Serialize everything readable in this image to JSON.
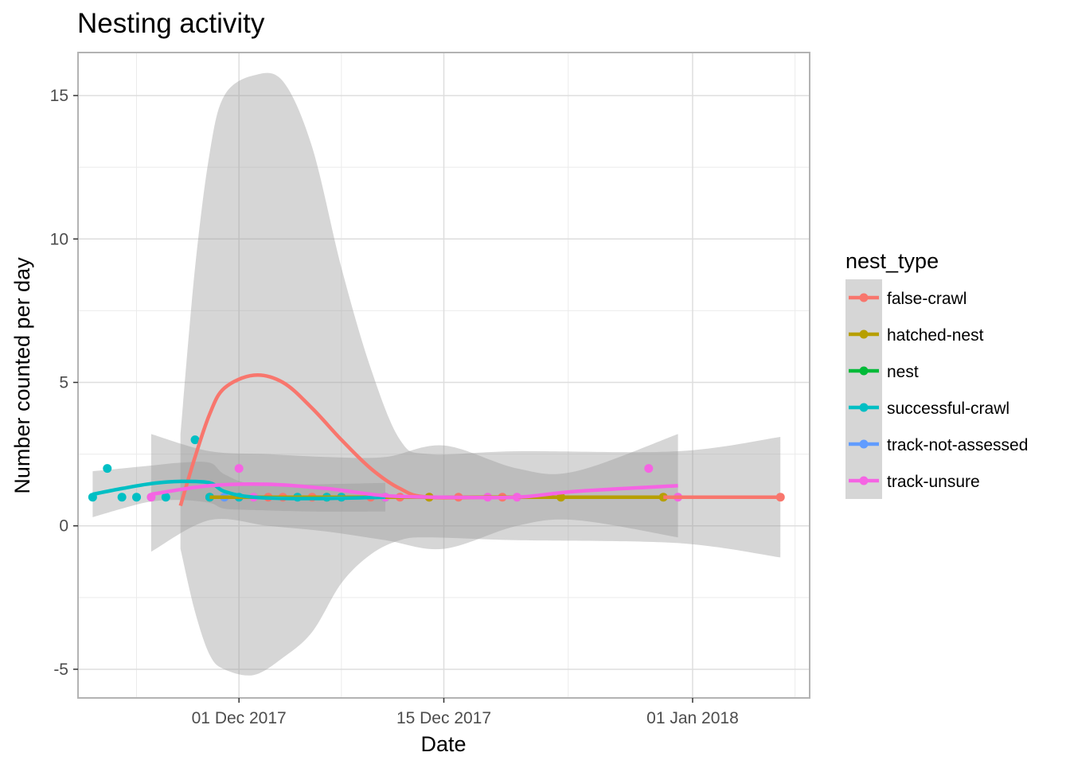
{
  "chart_data": {
    "type": "scatter",
    "title": "Nesting activity",
    "xlabel": "Date",
    "ylabel": "Number counted per day",
    "xlim": [
      "2017-11-20",
      "2018-01-09"
    ],
    "ylim": [
      -6,
      16.5
    ],
    "x_ticks": [
      {
        "date": "2017-12-01",
        "label": "01 Dec 2017"
      },
      {
        "date": "2017-12-15",
        "label": "15 Dec 2017"
      },
      {
        "date": "2018-01-01",
        "label": "01 Jan 2018"
      }
    ],
    "y_ticks": [
      {
        "value": -5,
        "label": "-5"
      },
      {
        "value": 0,
        "label": "0"
      },
      {
        "value": 5,
        "label": "5"
      },
      {
        "value": 10,
        "label": "10"
      },
      {
        "value": 15,
        "label": "15"
      }
    ],
    "grid": true,
    "legend": {
      "title": "nest_type",
      "position": "right"
    },
    "smoothing": "loess with confidence band",
    "series": [
      {
        "name": "false-crawl",
        "color": "#F8766D",
        "points": [
          {
            "x": "2017-11-30",
            "y": 1
          },
          {
            "x": "2017-12-03",
            "y": 1
          },
          {
            "x": "2017-12-04",
            "y": 1
          },
          {
            "x": "2017-12-06",
            "y": 1
          },
          {
            "x": "2017-12-08",
            "y": 1
          },
          {
            "x": "2017-12-10",
            "y": 1
          },
          {
            "x": "2017-12-12",
            "y": 1
          },
          {
            "x": "2017-12-14",
            "y": 1
          },
          {
            "x": "2017-12-16",
            "y": 1
          },
          {
            "x": "2017-12-19",
            "y": 1
          },
          {
            "x": "2018-01-07",
            "y": 1
          }
        ],
        "smooth": [
          {
            "x": "2017-11-27",
            "y": 0.7
          },
          {
            "x": "2017-11-28",
            "y": 2.4
          },
          {
            "x": "2017-11-29",
            "y": 3.9
          },
          {
            "x": "2017-11-30",
            "y": 4.8
          },
          {
            "x": "2017-12-02",
            "y": 5.25
          },
          {
            "x": "2017-12-04",
            "y": 5.0
          },
          {
            "x": "2017-12-06",
            "y": 4.1
          },
          {
            "x": "2017-12-08",
            "y": 3.0
          },
          {
            "x": "2017-12-10",
            "y": 2.0
          },
          {
            "x": "2017-12-12",
            "y": 1.3
          },
          {
            "x": "2017-12-14",
            "y": 1.0
          },
          {
            "x": "2017-12-20",
            "y": 1.0
          },
          {
            "x": "2017-12-31",
            "y": 1.0
          },
          {
            "x": "2018-01-07",
            "y": 1.0
          }
        ],
        "band_upper": [
          {
            "x": "2017-11-27",
            "y": 3.2
          },
          {
            "x": "2017-11-28",
            "y": 9.0
          },
          {
            "x": "2017-11-29",
            "y": 13.0
          },
          {
            "x": "2017-11-30",
            "y": 15.0
          },
          {
            "x": "2017-12-02",
            "y": 15.7
          },
          {
            "x": "2017-12-04",
            "y": 15.5
          },
          {
            "x": "2017-12-06",
            "y": 13.2
          },
          {
            "x": "2017-12-08",
            "y": 9.0
          },
          {
            "x": "2017-12-10",
            "y": 5.5
          },
          {
            "x": "2017-12-12",
            "y": 3.0
          },
          {
            "x": "2017-12-14",
            "y": 2.5
          },
          {
            "x": "2017-12-20",
            "y": 2.6
          },
          {
            "x": "2017-12-31",
            "y": 2.6
          },
          {
            "x": "2018-01-07",
            "y": 3.1
          }
        ],
        "band_lower": [
          {
            "x": "2017-11-27",
            "y": -0.8
          },
          {
            "x": "2017-11-28",
            "y": -3.0
          },
          {
            "x": "2017-11-29",
            "y": -4.5
          },
          {
            "x": "2017-11-30",
            "y": -5.0
          },
          {
            "x": "2017-12-02",
            "y": -5.2
          },
          {
            "x": "2017-12-04",
            "y": -4.6
          },
          {
            "x": "2017-12-06",
            "y": -3.7
          },
          {
            "x": "2017-12-08",
            "y": -2.0
          },
          {
            "x": "2017-12-10",
            "y": -1.0
          },
          {
            "x": "2017-12-12",
            "y": -0.5
          },
          {
            "x": "2017-12-14",
            "y": -0.4
          },
          {
            "x": "2017-12-20",
            "y": -0.5
          },
          {
            "x": "2017-12-31",
            "y": -0.6
          },
          {
            "x": "2018-01-07",
            "y": -1.1
          }
        ]
      },
      {
        "name": "hatched-nest",
        "color": "#B79F00",
        "points": [
          {
            "x": "2017-11-29",
            "y": 1
          },
          {
            "x": "2017-12-07",
            "y": 1
          },
          {
            "x": "2017-12-14",
            "y": 1
          },
          {
            "x": "2017-12-23",
            "y": 1
          },
          {
            "x": "2017-12-30",
            "y": 1
          }
        ],
        "smooth": [
          {
            "x": "2017-11-29",
            "y": 1.0
          },
          {
            "x": "2017-12-30",
            "y": 1.0
          }
        ]
      },
      {
        "name": "nest",
        "color": "#00BA38",
        "points": [],
        "smooth": []
      },
      {
        "name": "successful-crawl",
        "color": "#00BFC4",
        "points": [
          {
            "x": "2017-11-21",
            "y": 1
          },
          {
            "x": "2017-11-22",
            "y": 2
          },
          {
            "x": "2017-11-23",
            "y": 1
          },
          {
            "x": "2017-11-24",
            "y": 1
          },
          {
            "x": "2017-11-26",
            "y": 1
          },
          {
            "x": "2017-11-28",
            "y": 3
          },
          {
            "x": "2017-11-29",
            "y": 1
          },
          {
            "x": "2017-12-01",
            "y": 1
          },
          {
            "x": "2017-12-05",
            "y": 1
          },
          {
            "x": "2017-12-07",
            "y": 1
          },
          {
            "x": "2017-12-08",
            "y": 1
          },
          {
            "x": "2017-12-11",
            "y": 1
          }
        ],
        "smooth": [
          {
            "x": "2017-11-21",
            "y": 1.1
          },
          {
            "x": "2017-11-23",
            "y": 1.3
          },
          {
            "x": "2017-11-25",
            "y": 1.47
          },
          {
            "x": "2017-11-27",
            "y": 1.55
          },
          {
            "x": "2017-11-29",
            "y": 1.5
          },
          {
            "x": "2017-11-30",
            "y": 1.2
          },
          {
            "x": "2017-12-02",
            "y": 1.0
          },
          {
            "x": "2017-12-06",
            "y": 0.95
          },
          {
            "x": "2017-12-11",
            "y": 1.0
          }
        ],
        "band_upper": [
          {
            "x": "2017-11-21",
            "y": 1.9
          },
          {
            "x": "2017-11-23",
            "y": 2.0
          },
          {
            "x": "2017-11-25",
            "y": 2.1
          },
          {
            "x": "2017-11-27",
            "y": 2.2
          },
          {
            "x": "2017-11-29",
            "y": 2.2
          },
          {
            "x": "2017-11-30",
            "y": 1.8
          },
          {
            "x": "2017-12-02",
            "y": 1.45
          },
          {
            "x": "2017-12-06",
            "y": 1.45
          },
          {
            "x": "2017-12-11",
            "y": 1.5
          }
        ],
        "band_lower": [
          {
            "x": "2017-11-21",
            "y": 0.3
          },
          {
            "x": "2017-11-23",
            "y": 0.6
          },
          {
            "x": "2017-11-25",
            "y": 0.85
          },
          {
            "x": "2017-11-27",
            "y": 0.9
          },
          {
            "x": "2017-11-29",
            "y": 0.8
          },
          {
            "x": "2017-11-30",
            "y": 0.6
          },
          {
            "x": "2017-12-02",
            "y": 0.55
          },
          {
            "x": "2017-12-06",
            "y": 0.5
          },
          {
            "x": "2017-12-11",
            "y": 0.5
          }
        ]
      },
      {
        "name": "track-not-assessed",
        "color": "#619CFF",
        "points": [
          {
            "x": "2017-11-30",
            "y": 1
          }
        ],
        "smooth": []
      },
      {
        "name": "track-unsure",
        "color": "#F564E3",
        "points": [
          {
            "x": "2017-11-25",
            "y": 1
          },
          {
            "x": "2017-12-01",
            "y": 2
          },
          {
            "x": "2017-12-02",
            "y": 1
          },
          {
            "x": "2017-12-11",
            "y": 1
          },
          {
            "x": "2017-12-18",
            "y": 1
          },
          {
            "x": "2017-12-20",
            "y": 1
          },
          {
            "x": "2017-12-29",
            "y": 2
          },
          {
            "x": "2017-12-31",
            "y": 1
          }
        ],
        "smooth": [
          {
            "x": "2017-11-25",
            "y": 1.1
          },
          {
            "x": "2017-11-29",
            "y": 1.4
          },
          {
            "x": "2017-12-03",
            "y": 1.45
          },
          {
            "x": "2017-12-07",
            "y": 1.3
          },
          {
            "x": "2017-12-11",
            "y": 1.05
          },
          {
            "x": "2017-12-15",
            "y": 1.0
          },
          {
            "x": "2017-12-20",
            "y": 1.0
          },
          {
            "x": "2017-12-24",
            "y": 1.2
          },
          {
            "x": "2017-12-31",
            "y": 1.4
          }
        ],
        "band_upper": [
          {
            "x": "2017-11-25",
            "y": 3.2
          },
          {
            "x": "2017-11-29",
            "y": 2.6
          },
          {
            "x": "2017-12-03",
            "y": 2.5
          },
          {
            "x": "2017-12-07",
            "y": 2.4
          },
          {
            "x": "2017-12-11",
            "y": 2.4
          },
          {
            "x": "2017-12-15",
            "y": 2.8
          },
          {
            "x": "2017-12-20",
            "y": 2.0
          },
          {
            "x": "2017-12-24",
            "y": 1.9
          },
          {
            "x": "2017-12-31",
            "y": 3.2
          }
        ],
        "band_lower": [
          {
            "x": "2017-11-25",
            "y": -0.9
          },
          {
            "x": "2017-11-29",
            "y": 0.2
          },
          {
            "x": "2017-12-03",
            "y": 0.0
          },
          {
            "x": "2017-12-07",
            "y": -0.2
          },
          {
            "x": "2017-12-11",
            "y": -0.5
          },
          {
            "x": "2017-12-15",
            "y": -0.8
          },
          {
            "x": "2017-12-20",
            "y": 0.0
          },
          {
            "x": "2017-12-24",
            "y": 0.2
          },
          {
            "x": "2017-12-31",
            "y": -0.4
          }
        ]
      }
    ]
  }
}
